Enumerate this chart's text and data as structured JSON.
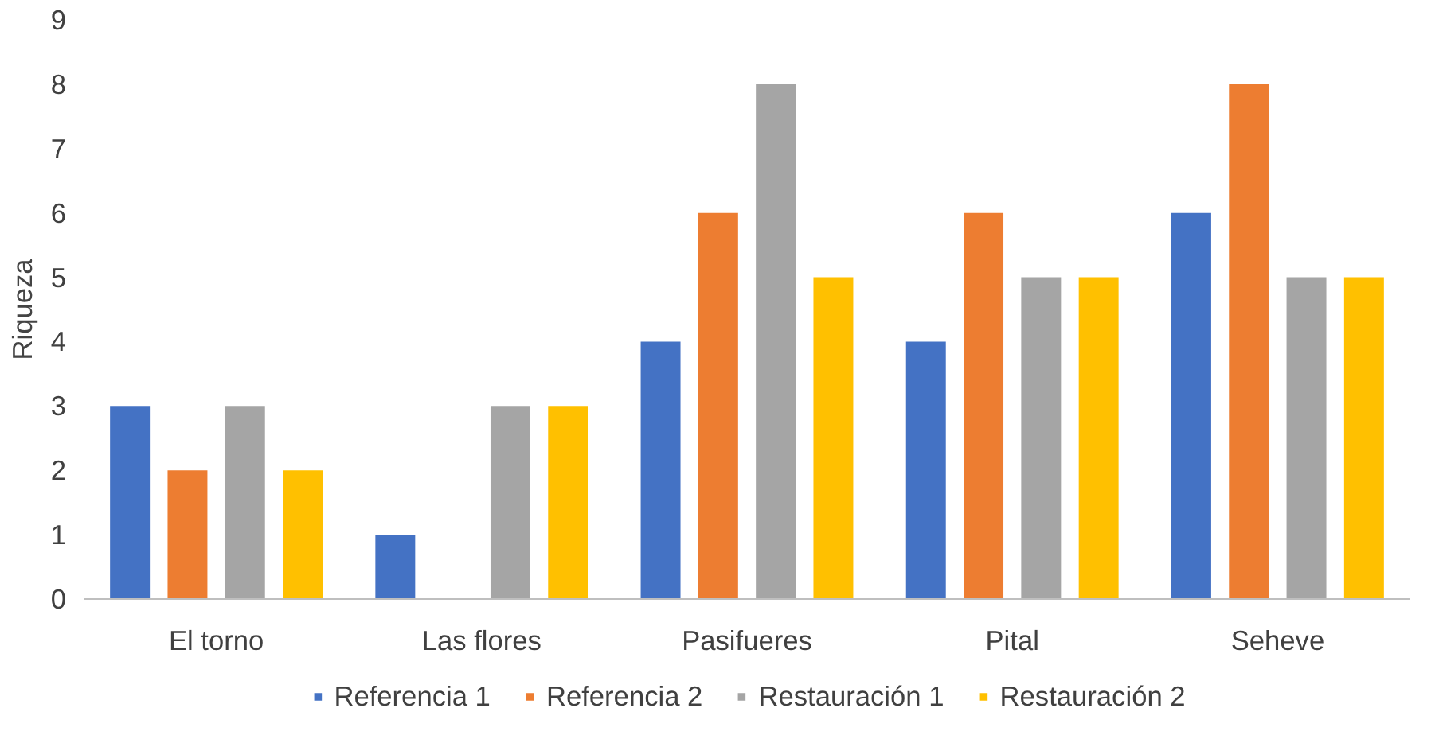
{
  "chart_data": {
    "type": "bar",
    "ylabel": "Riqueza",
    "categories": [
      "El torno",
      "Las flores",
      "Pasifueres",
      "Pital",
      "Seheve"
    ],
    "series": [
      {
        "name": "Referencia 1",
        "color": "#4472c4",
        "values": [
          3,
          1,
          4,
          4,
          6
        ]
      },
      {
        "name": "Referencia 2",
        "color": "#ed7d31",
        "values": [
          2,
          0,
          6,
          6,
          8
        ]
      },
      {
        "name": "Restauración 1",
        "color": "#a5a5a5",
        "values": [
          3,
          3,
          8,
          5,
          5
        ]
      },
      {
        "name": "Restauración 2",
        "color": "#ffc000",
        "values": [
          2,
          3,
          5,
          5,
          5
        ]
      }
    ],
    "ylim": [
      0,
      9
    ],
    "yticks": [
      0,
      1,
      2,
      3,
      4,
      5,
      6,
      7,
      8,
      9
    ],
    "grid": false,
    "legend": "bottom"
  }
}
